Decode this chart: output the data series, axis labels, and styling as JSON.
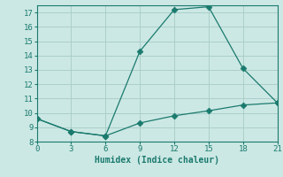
{
  "xlabel": "Humidex (Indice chaleur)",
  "line1_x": [
    0,
    3,
    6,
    9,
    12,
    15,
    18,
    21
  ],
  "line1_y": [
    9.6,
    8.7,
    8.4,
    9.3,
    9.8,
    10.15,
    10.55,
    10.7
  ],
  "line2_x": [
    0,
    3,
    6,
    9,
    12,
    15,
    18,
    21
  ],
  "line2_y": [
    9.6,
    8.7,
    8.4,
    14.3,
    17.2,
    17.4,
    13.1,
    10.7
  ],
  "line_color": "#1a7a6e",
  "bg_color": "#cce8e4",
  "grid_color": "#aacfca",
  "xlim": [
    0,
    21
  ],
  "ylim": [
    8,
    17.5
  ],
  "xticks": [
    0,
    3,
    6,
    9,
    12,
    15,
    18,
    21
  ],
  "yticks": [
    8,
    9,
    10,
    11,
    12,
    13,
    14,
    15,
    16,
    17
  ],
  "markersize": 3.5
}
